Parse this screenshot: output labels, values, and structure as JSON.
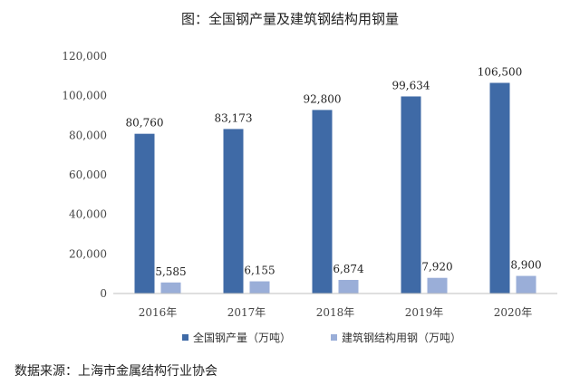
{
  "title": "图：全国钢产量及建筑钢结构用钢量",
  "source": "数据来源：上海市金属结构行业协会",
  "colors": {
    "series1": "#3f6aa6",
    "series2": "#9aaed8",
    "axis": "#bfbfbf"
  },
  "chart_data": {
    "type": "bar",
    "title": "图：全国钢产量及建筑钢结构用钢量",
    "categories": [
      "2016年",
      "2017年",
      "2018年",
      "2019年",
      "2020年"
    ],
    "series": [
      {
        "name": "全国钢产量（万吨）",
        "values": [
          80760,
          83173,
          92800,
          99634,
          106500
        ],
        "labels": [
          "80,760",
          "83,173",
          "92,800",
          "99,634",
          "106,500"
        ]
      },
      {
        "name": "建筑钢结构用钢（万吨）",
        "values": [
          5585,
          6155,
          6874,
          7920,
          8900
        ],
        "labels": [
          "5,585",
          "6,155",
          "6,874",
          "7,920",
          "8,900"
        ]
      }
    ],
    "yticks": [
      0,
      20000,
      40000,
      60000,
      80000,
      100000,
      120000
    ],
    "ytick_labels": [
      "0",
      "20,000",
      "40,000",
      "60,000",
      "80,000",
      "100,000",
      "120,000"
    ],
    "ylim": [
      0,
      120000
    ],
    "grid": false,
    "legend": "bottom"
  }
}
